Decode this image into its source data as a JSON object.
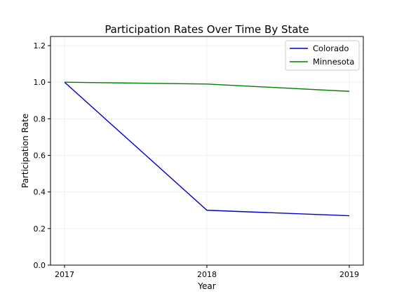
{
  "chart_data": {
    "type": "line",
    "title": "Participation Rates Over Time By State",
    "xlabel": "Year",
    "ylabel": "Participation Rate",
    "x": [
      "2017",
      "2018",
      "2019"
    ],
    "series": [
      {
        "name": "Colorado",
        "values": [
          1.0,
          0.3,
          0.27
        ],
        "color": "#0000cc"
      },
      {
        "name": "Minnesota",
        "values": [
          1.0,
          0.99,
          0.95
        ],
        "color": "#007f00"
      }
    ],
    "ylim": [
      0,
      1.25
    ],
    "yticks": [
      "0.0",
      "0.2",
      "0.4",
      "0.6",
      "0.8",
      "1.0",
      "1.2"
    ],
    "grid": true,
    "legend_position": "top-right"
  }
}
